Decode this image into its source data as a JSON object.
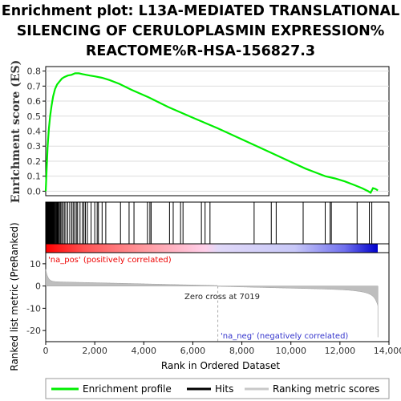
{
  "title_lines": [
    "Enrichment plot: L13A-MEDIATED TRANSLATIONAL",
    "SILENCING OF CERULOPLASMIN EXPRESSION%",
    "REACTOME%R-HSA-156827.3"
  ],
  "chart_data": {
    "type": "line",
    "panels": {
      "enrichment": {
        "ylabel": "Enrichment score (ES)",
        "ylim": [
          -0.03,
          0.83
        ],
        "yticks": [
          "0.0",
          "0.1",
          "0.2",
          "0.3",
          "0.4",
          "0.5",
          "0.6",
          "0.7",
          "0.8"
        ],
        "series": [
          {
            "name": "Enrichment profile",
            "color": "#00ee00",
            "x": [
              0,
              40,
              80,
              130,
              180,
              240,
              300,
              380,
              460,
              560,
              660,
              760,
              900,
              1050,
              1200,
              1350,
              1500,
              1650,
              1800,
              2000,
              2300,
              2600,
              3000,
              3500,
              4200,
              5000,
              6000,
              7000,
              8000,
              9000,
              10000,
              10600,
              11000,
              11400,
              11800,
              12200,
              12600,
              12900,
              13150,
              13250,
              13350,
              13450,
              13550
            ],
            "y": [
              0.0,
              0.15,
              0.3,
              0.42,
              0.5,
              0.57,
              0.63,
              0.68,
              0.71,
              0.73,
              0.75,
              0.76,
              0.77,
              0.775,
              0.785,
              0.785,
              0.78,
              0.775,
              0.77,
              0.765,
              0.755,
              0.74,
              0.715,
              0.675,
              0.625,
              0.56,
              0.49,
              0.42,
              0.345,
              0.27,
              0.195,
              0.15,
              0.125,
              0.1,
              0.085,
              0.065,
              0.04,
              0.02,
              0.0,
              -0.01,
              0.02,
              0.015,
              0.005
            ]
          }
        ]
      },
      "hits": {
        "name": "Hits",
        "positions": [
          10,
          30,
          50,
          70,
          90,
          110,
          130,
          150,
          170,
          190,
          210,
          230,
          250,
          270,
          290,
          310,
          330,
          350,
          370,
          400,
          430,
          460,
          490,
          520,
          560,
          600,
          650,
          700,
          760,
          820,
          900,
          980,
          1060,
          1120,
          1180,
          1250,
          1300,
          1400,
          1500,
          1560,
          1620,
          1700,
          1850,
          2000,
          2100,
          2150,
          2300,
          2450,
          3050,
          3400,
          3600,
          4150,
          4250,
          4300,
          5050,
          5200,
          5500,
          5600,
          6500,
          6700,
          6350,
          8500,
          9200,
          9400,
          10500,
          11400,
          11600,
          11650,
          12700,
          13200,
          13300
        ]
      },
      "ranked_metric": {
        "name": "Ranking metric scores",
        "ylabel": "Ranked list metric (PreRanked)",
        "ylim": [
          -25,
          15
        ],
        "yticks": [
          "10",
          "0",
          "-10",
          "-20"
        ],
        "pos_label": "'na_pos' (positively correlated)",
        "neg_label": "'na_neg' (negatively correlated)",
        "zero_cross_label": "Zero cross at 7019",
        "zero_cross": 7019
      }
    },
    "x_axis": {
      "label": "Rank in Ordered Dataset",
      "xlim": [
        0,
        14000
      ],
      "ticks": [
        "0",
        "2,000",
        "4,000",
        "6,000",
        "8,000",
        "10,000",
        "12,000",
        "14,000"
      ],
      "n_genes": 13550
    },
    "legend": {
      "placement": "bottom",
      "items": [
        {
          "label": "Enrichment profile",
          "color": "#00ee00"
        },
        {
          "label": "Hits",
          "color": "#000000"
        },
        {
          "label": "Ranking metric scores",
          "color": "#c8c8c8"
        }
      ]
    }
  }
}
